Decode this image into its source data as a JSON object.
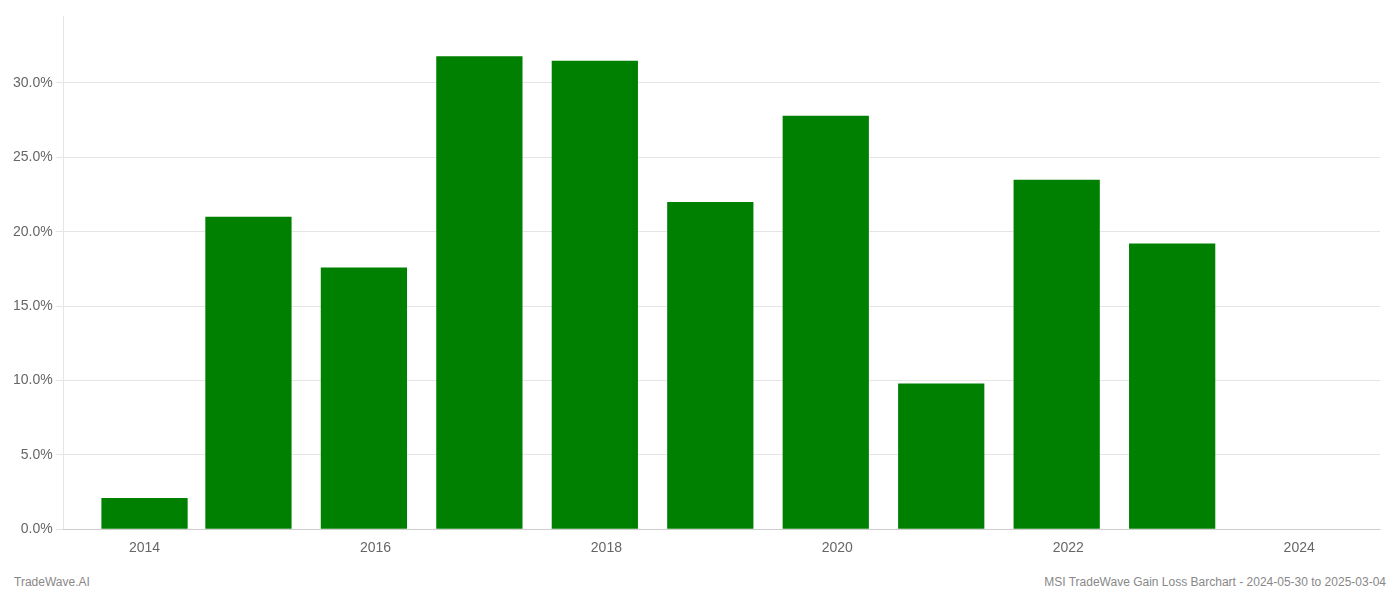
{
  "chart_data": {
    "type": "bar",
    "x": [
      2014.0,
      2014.9,
      2015.9,
      2016.9,
      2017.9,
      2018.9,
      2019.9,
      2020.9,
      2021.9,
      2022.9
    ],
    "values": [
      0.021,
      0.21,
      0.176,
      0.318,
      0.315,
      0.22,
      0.278,
      0.098,
      0.235,
      0.192
    ],
    "color": "#008000",
    "xlim": [
      2013.3,
      2024.7
    ],
    "xticks": [
      2014,
      2016,
      2018,
      2020,
      2022,
      2024
    ],
    "ylim": [
      0.0,
      0.345
    ],
    "yticks": [
      {
        "value": 0.0,
        "label": "0.0%"
      },
      {
        "value": 0.05,
        "label": "5.0%"
      },
      {
        "value": 0.1,
        "label": "10.0%"
      },
      {
        "value": 0.15,
        "label": "15.0%"
      },
      {
        "value": 0.2,
        "label": "20.0%"
      },
      {
        "value": 0.25,
        "label": "25.0%"
      },
      {
        "value": 0.3,
        "label": "30.0%"
      }
    ],
    "grid": true,
    "annotations": [
      "TradeWave.AI",
      "MSI TradeWave Gain Loss Barchart - 2024-05-30 to 2025-03-04"
    ]
  }
}
